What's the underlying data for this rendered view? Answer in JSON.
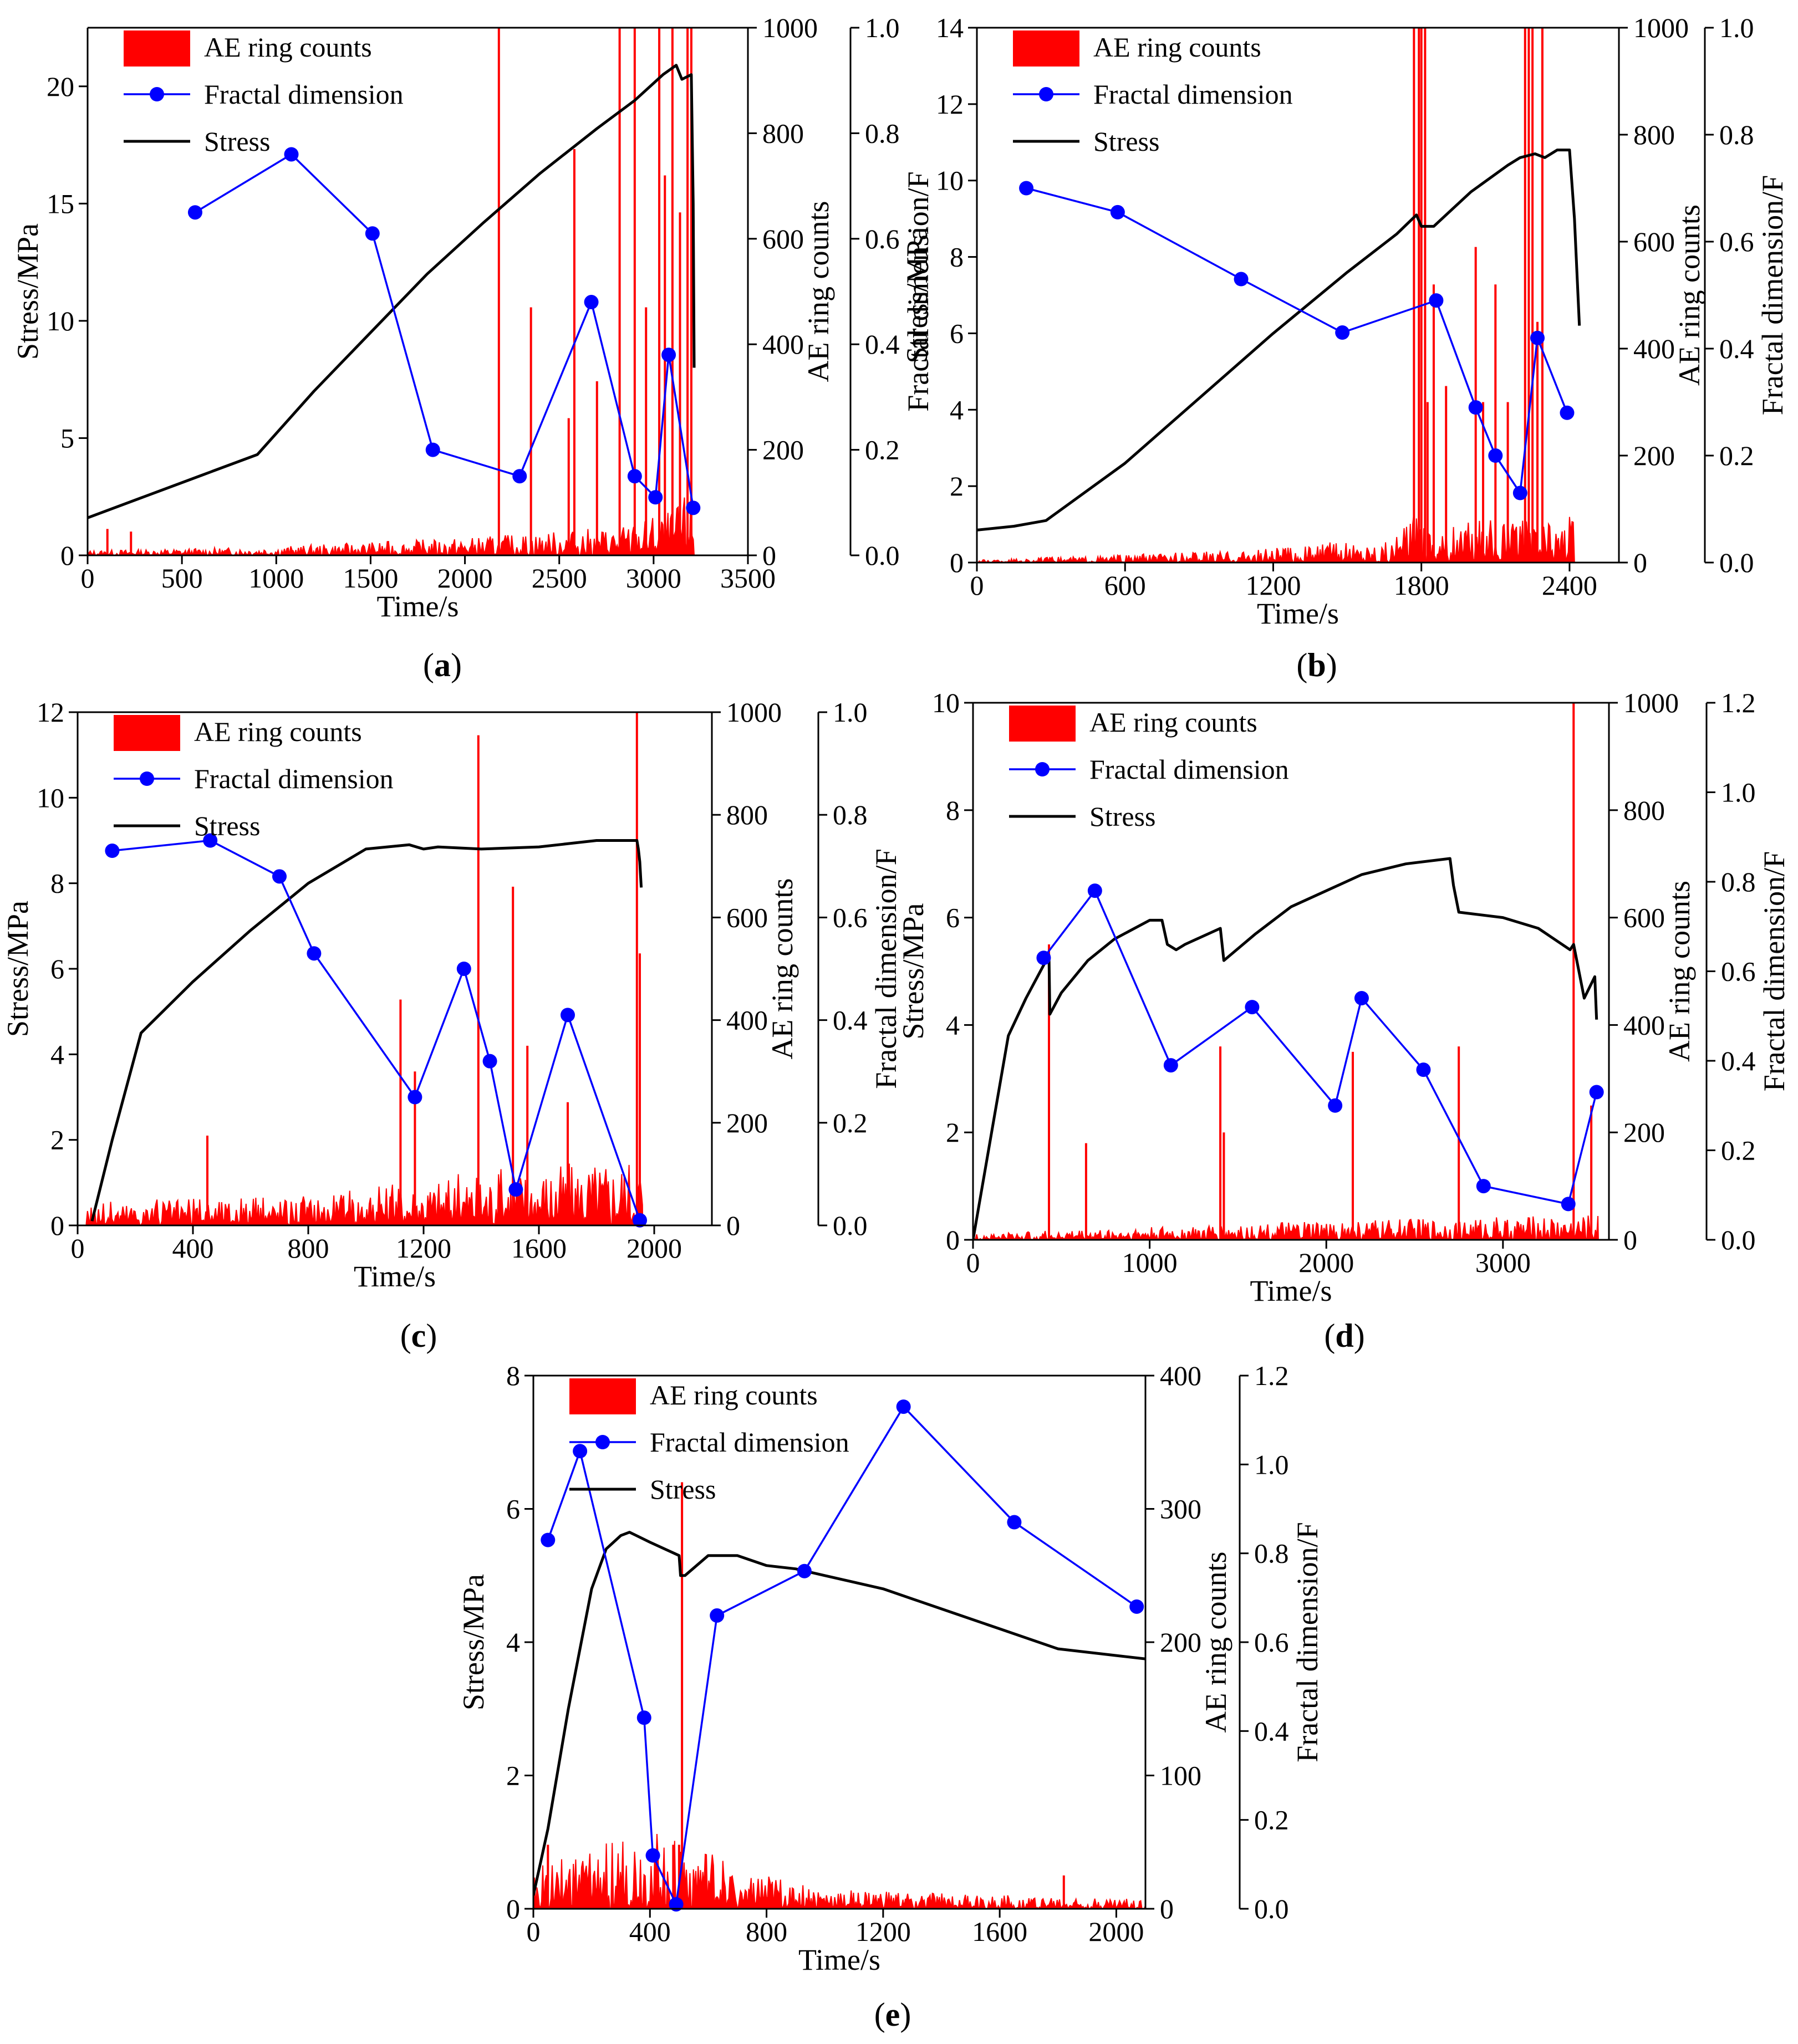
{
  "chart_data": [
    {
      "panel_label": "a",
      "type": "combo",
      "xlabel": "Time/s",
      "ylabel_left": "Stress/MPa",
      "ylabel_ae": "AE ring counts",
      "ylabel_fd": "Fractal dimension/F",
      "xlim": [
        0,
        3500
      ],
      "xticks": [
        0,
        500,
        1000,
        1500,
        2000,
        2500,
        3000,
        3500
      ],
      "ylim_stress": [
        0,
        22.5
      ],
      "yticks_stress": [
        0,
        5,
        10,
        15,
        20
      ],
      "ylim_ae": [
        0,
        1000
      ],
      "yticks_ae": [
        0,
        200,
        400,
        600,
        800,
        1000
      ],
      "ylim_fd": [
        0,
        1.0
      ],
      "yticks_fd": [
        "0.0",
        "0.2",
        "0.4",
        "0.6",
        "0.8",
        "1.0"
      ],
      "legend": [
        "AE ring counts",
        "Fractal dimension",
        "Stress"
      ],
      "legend_location": "top-left",
      "stress": {
        "x": [
          0,
          300,
          600,
          900,
          1200,
          1500,
          1800,
          2100,
          2400,
          2700,
          2900,
          3050,
          3120,
          3150,
          3200,
          3210,
          3215
        ],
        "y": [
          1.6,
          2.5,
          3.4,
          4.3,
          7.0,
          9.5,
          12.0,
          14.2,
          16.3,
          18.2,
          19.4,
          20.5,
          20.9,
          20.3,
          20.5,
          15.0,
          8.0
        ]
      },
      "fractal": {
        "x": [
          570,
          1080,
          1510,
          1830,
          2290,
          2670,
          2900,
          3010,
          3080,
          3210
        ],
        "y": [
          0.65,
          0.76,
          0.61,
          0.2,
          0.15,
          0.48,
          0.15,
          0.11,
          0.38,
          0.09
        ]
      },
      "ae": {
        "t_end": 3215,
        "ramp": [
          [
            0,
            8
          ],
          [
            1000,
            14
          ],
          [
            2000,
            28
          ],
          [
            2800,
            45
          ],
          [
            3100,
            70
          ],
          [
            3215,
            110
          ]
        ],
        "spikes": [
          [
            105,
            50
          ],
          [
            230,
            45
          ],
          [
            2180,
            1000
          ],
          [
            2350,
            470
          ],
          [
            2550,
            260
          ],
          [
            2580,
            770
          ],
          [
            2700,
            330
          ],
          [
            2820,
            1000
          ],
          [
            2900,
            1000
          ],
          [
            2960,
            470
          ],
          [
            3030,
            1000
          ],
          [
            3060,
            720
          ],
          [
            3100,
            1000
          ],
          [
            3140,
            650
          ],
          [
            3180,
            1000
          ],
          [
            3200,
            1000
          ]
        ]
      }
    },
    {
      "panel_label": "b",
      "type": "combo",
      "xlabel": "Time/s",
      "ylabel_left": "Stress/MPa",
      "ylabel_ae": "AE ring counts",
      "ylabel_fd": "Fractal dimension/F",
      "xlim": [
        0,
        2600
      ],
      "xticks": [
        0,
        600,
        1200,
        1800,
        2400
      ],
      "ylim_stress": [
        0,
        14
      ],
      "yticks_stress": [
        0,
        2,
        4,
        6,
        8,
        10,
        12,
        14
      ],
      "ylim_ae": [
        0,
        1000
      ],
      "yticks_ae": [
        0,
        200,
        400,
        600,
        800,
        1000
      ],
      "ylim_fd": [
        0,
        1.0
      ],
      "yticks_fd": [
        "0.0",
        "0.2",
        "0.4",
        "0.6",
        "0.8",
        "1.0"
      ],
      "legend": [
        "AE ring counts",
        "Fractal dimension",
        "Stress"
      ],
      "legend_location": "top-left",
      "stress": {
        "x": [
          0,
          150,
          280,
          600,
          900,
          1200,
          1500,
          1700,
          1780,
          1800,
          1850,
          2000,
          2150,
          2200,
          2260,
          2300,
          2350,
          2400,
          2420,
          2440
        ],
        "y": [
          0.85,
          0.95,
          1.1,
          2.6,
          4.3,
          6.0,
          7.6,
          8.6,
          9.1,
          8.8,
          8.8,
          9.7,
          10.4,
          10.6,
          10.7,
          10.6,
          10.8,
          10.8,
          9.0,
          6.2
        ]
      },
      "fractal": {
        "x": [
          200,
          570,
          1070,
          1480,
          1860,
          2020,
          2100,
          2200,
          2270,
          2390
        ],
        "y": [
          0.7,
          0.655,
          0.53,
          0.43,
          0.49,
          0.29,
          0.2,
          0.13,
          0.42,
          0.28
        ]
      },
      "ae": {
        "t_end": 2420,
        "ramp": [
          [
            0,
            4
          ],
          [
            1000,
            18
          ],
          [
            1700,
            40
          ],
          [
            1800,
            100
          ],
          [
            1850,
            60
          ],
          [
            2200,
            70
          ],
          [
            2420,
            80
          ]
        ],
        "spikes": [
          [
            1770,
            1000
          ],
          [
            1790,
            1000
          ],
          [
            1800,
            1000
          ],
          [
            1815,
            1000
          ],
          [
            1825,
            300
          ],
          [
            1850,
            520
          ],
          [
            1900,
            330
          ],
          [
            2020,
            590
          ],
          [
            2050,
            300
          ],
          [
            2100,
            520
          ],
          [
            2150,
            300
          ],
          [
            2220,
            1000
          ],
          [
            2235,
            1000
          ],
          [
            2250,
            1000
          ],
          [
            2270,
            450
          ],
          [
            2290,
            1000
          ]
        ]
      }
    },
    {
      "panel_label": "c",
      "type": "combo",
      "xlabel": "Time/s",
      "ylabel_left": "Stress/MPa",
      "ylabel_ae": "AE ring counts",
      "ylabel_fd": "Fractal dimension/F",
      "xlim": [
        0,
        2200
      ],
      "xticks": [
        0,
        400,
        800,
        1200,
        1600,
        2000
      ],
      "ylim_stress": [
        0,
        12
      ],
      "yticks_stress": [
        0,
        2,
        4,
        6,
        8,
        10,
        12
      ],
      "ylim_ae": [
        0,
        1000
      ],
      "yticks_ae": [
        0,
        200,
        400,
        600,
        800,
        1000
      ],
      "ylim_fd": [
        0,
        1.0
      ],
      "yticks_fd": [
        "0.0",
        "0.2",
        "0.4",
        "0.6",
        "0.8",
        "1.0"
      ],
      "legend": [
        "AE ring counts",
        "Fractal dimension",
        "Stress"
      ],
      "legend_location": "top-left",
      "stress": {
        "x": [
          50,
          120,
          220,
          400,
          600,
          800,
          1000,
          1150,
          1200,
          1250,
          1400,
          1600,
          1800,
          1940,
          1945,
          1950,
          1955
        ],
        "y": [
          0.1,
          2.0,
          4.5,
          5.7,
          6.9,
          8.0,
          8.8,
          8.9,
          8.8,
          8.85,
          8.8,
          8.85,
          9.0,
          9.0,
          8.8,
          8.5,
          7.9
        ]
      },
      "fractal": {
        "x": [
          120,
          460,
          700,
          820,
          1170,
          1340,
          1430,
          1520,
          1700,
          1950
        ],
        "y": [
          0.73,
          0.75,
          0.68,
          0.53,
          0.25,
          0.5,
          0.32,
          0.07,
          0.41,
          0.01
        ]
      },
      "ae": {
        "t_end": 1960,
        "ramp": [
          [
            30,
            40
          ],
          [
            600,
            45
          ],
          [
            1000,
            60
          ],
          [
            1400,
            90
          ],
          [
            1800,
            110
          ],
          [
            1960,
            120
          ]
        ],
        "spikes": [
          [
            450,
            175
          ],
          [
            1120,
            440
          ],
          [
            1170,
            300
          ],
          [
            1390,
            955
          ],
          [
            1510,
            660
          ],
          [
            1560,
            350
          ],
          [
            1700,
            240
          ],
          [
            1940,
            1000
          ],
          [
            1950,
            530
          ]
        ]
      }
    },
    {
      "panel_label": "d",
      "type": "combo",
      "xlabel": "Time/s",
      "ylabel_left": "Stress/MPa",
      "ylabel_ae": "AE ring counts",
      "ylabel_fd": "Fractal dimension/F",
      "xlim": [
        0,
        3600
      ],
      "xticks": [
        0,
        1000,
        2000,
        3000
      ],
      "ylim_stress": [
        0,
        10
      ],
      "yticks_stress": [
        0,
        2,
        4,
        6,
        8,
        10
      ],
      "ylim_ae": [
        0,
        1000
      ],
      "yticks_ae": [
        0,
        200,
        400,
        600,
        800,
        1000
      ],
      "ylim_fd": [
        0,
        1.2
      ],
      "yticks_fd": [
        "0.0",
        "0.2",
        "0.4",
        "0.6",
        "0.8",
        "1.0",
        "1.2"
      ],
      "legend": [
        "AE ring counts",
        "Fractal dimension",
        "Stress"
      ],
      "legend_location": "top-left",
      "stress": {
        "x": [
          0,
          200,
          300,
          430,
          435,
          500,
          650,
          800,
          1000,
          1070,
          1100,
          1150,
          1200,
          1400,
          1420,
          1600,
          1800,
          2000,
          2200,
          2450,
          2700,
          2720,
          2750,
          3000,
          3200,
          3380,
          3400,
          3460,
          3520,
          3530
        ],
        "y": [
          0,
          3.8,
          4.5,
          5.3,
          4.2,
          4.6,
          5.2,
          5.6,
          5.95,
          5.95,
          5.5,
          5.4,
          5.5,
          5.8,
          5.2,
          5.7,
          6.2,
          6.5,
          6.8,
          7.0,
          7.1,
          6.6,
          6.1,
          6.0,
          5.8,
          5.4,
          5.5,
          4.5,
          4.9,
          4.1
        ]
      },
      "fractal": {
        "x": [
          400,
          690,
          1120,
          1580,
          2050,
          2200,
          2550,
          2890,
          3370,
          3530
        ],
        "y": [
          0.63,
          0.78,
          0.39,
          0.52,
          0.3,
          0.54,
          0.38,
          0.12,
          0.08,
          0.33
        ]
      },
      "ae": {
        "t_end": 3540,
        "ramp": [
          [
            0,
            10
          ],
          [
            1000,
            20
          ],
          [
            2000,
            30
          ],
          [
            3000,
            35
          ],
          [
            3540,
            40
          ]
        ],
        "spikes": [
          [
            430,
            550
          ],
          [
            640,
            180
          ],
          [
            1400,
            360
          ],
          [
            1420,
            200
          ],
          [
            2150,
            350
          ],
          [
            2750,
            360
          ],
          [
            3400,
            1000
          ],
          [
            3500,
            250
          ]
        ]
      }
    },
    {
      "panel_label": "e",
      "type": "combo",
      "xlabel": "Time/s",
      "ylabel_left": "Stress/MPa",
      "ylabel_ae": "AE ring counts",
      "ylabel_fd": "Fractal dimension/F",
      "xlim": [
        0,
        2100
      ],
      "xticks": [
        0,
        400,
        800,
        1200,
        1600,
        2000
      ],
      "ylim_stress": [
        0,
        8
      ],
      "yticks_stress": [
        0,
        2,
        4,
        6,
        8
      ],
      "ylim_ae": [
        0,
        400
      ],
      "yticks_ae": [
        0,
        100,
        200,
        300,
        400
      ],
      "ylim_fd": [
        0,
        1.2
      ],
      "yticks_fd": [
        "0.0",
        "0.2",
        "0.4",
        "0.6",
        "0.8",
        "1.0",
        "1.2"
      ],
      "legend": [
        "AE ring counts",
        "Fractal dimension",
        "Stress"
      ],
      "legend_location": "top-left",
      "stress": {
        "x": [
          0,
          50,
          120,
          200,
          250,
          300,
          330,
          400,
          500,
          505,
          520,
          600,
          700,
          800,
          900,
          1000,
          1200,
          1400,
          1600,
          1800,
          2000,
          2100
        ],
        "y": [
          0.2,
          1.2,
          3.0,
          4.8,
          5.4,
          5.6,
          5.65,
          5.5,
          5.3,
          5.0,
          5.0,
          5.3,
          5.3,
          5.15,
          5.1,
          5.0,
          4.8,
          4.5,
          4.2,
          3.9,
          3.8,
          3.75
        ]
      },
      "fractal": {
        "x": [
          50,
          160,
          380,
          410,
          490,
          630,
          930,
          1270,
          1650,
          2070
        ],
        "y": [
          0.83,
          1.03,
          0.43,
          0.12,
          0.01,
          0.66,
          0.76,
          1.13,
          0.87,
          0.68
        ]
      },
      "ae": {
        "t_end": 2100,
        "ramp": [
          [
            0,
            25
          ],
          [
            300,
            45
          ],
          [
            500,
            50
          ],
          [
            700,
            25
          ],
          [
            1000,
            12
          ],
          [
            2100,
            6
          ]
        ],
        "spikes": [
          [
            50,
            48
          ],
          [
            480,
            48
          ],
          [
            500,
            48
          ],
          [
            510,
            320
          ],
          [
            1820,
            25
          ]
        ]
      }
    }
  ]
}
